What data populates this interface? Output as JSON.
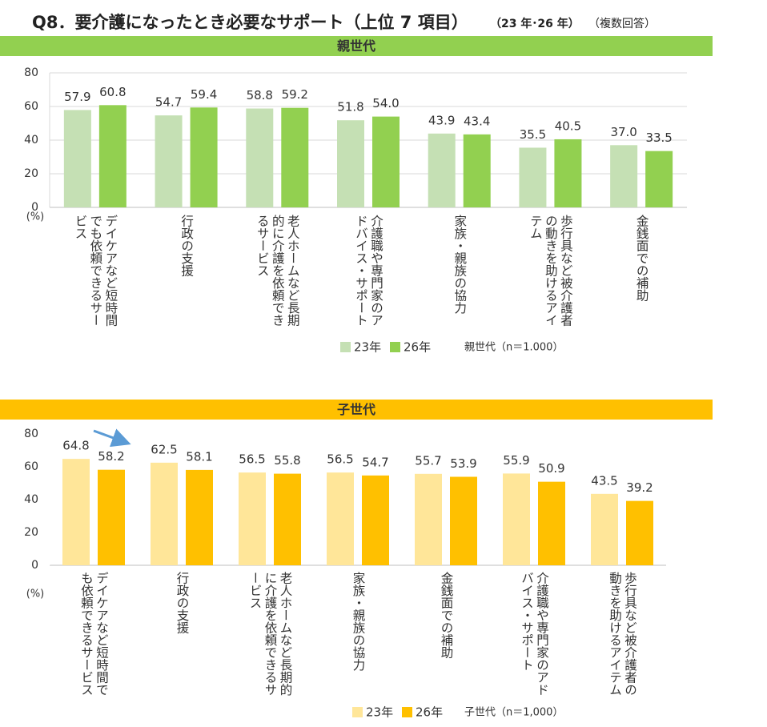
{
  "title": "Q8．要介護になったとき必要なサポート（上位 7 項目）",
  "period": "（23 年･26 年）",
  "note": "（複数回答）",
  "chart_data": [
    {
      "type": "bar",
      "title": "親世代",
      "title_color": "#92d050",
      "categories": [
        "デイケアなど短時間でも依頼できるサービス",
        "行政の支援",
        "老人ホームなど長期的に介護を依頼できるサービス",
        "介護職や専門家のアドバイス・サポート",
        "家族・親族の協力",
        "歩行具など被介護者の動きを助けるアイテム",
        "金銭面での補助"
      ],
      "series": [
        {
          "name": "23年",
          "color": "#c5e0b4",
          "values": [
            57.9,
            54.7,
            58.8,
            51.8,
            43.9,
            35.5,
            37.0
          ],
          "value_labels": [
            "57.9",
            "54.7",
            "58.8",
            "51.8",
            "43.9",
            "35.5",
            "37.0"
          ]
        },
        {
          "name": "26年",
          "color": "#92d050",
          "values": [
            60.8,
            59.4,
            59.2,
            54.0,
            43.4,
            40.5,
            33.5
          ],
          "value_labels": [
            "60.8",
            "59.4",
            "59.2",
            "54.0",
            "43.4",
            "40.5",
            "33.5"
          ]
        }
      ],
      "y_label": "(%)",
      "sample": "親世代（n＝1.000）",
      "ylim": [
        0,
        80
      ],
      "yticks": [
        0,
        20,
        40,
        60,
        80
      ],
      "grid": true
    },
    {
      "type": "bar",
      "title": "子世代",
      "title_color": "#ffc000",
      "categories": [
        "デイケアなど短時間でも依頼できるサービス",
        "行政の支援",
        "老人ホームなど長期的に介護を依頼できるサービス",
        "家族・親族の協力",
        "金銭面での補助",
        "介護職や専門家のアドバイス・サポート",
        "歩行具など被介護者の動きを助けるアイテム"
      ],
      "series": [
        {
          "name": "23年",
          "color": "#ffe699",
          "values": [
            64.8,
            62.5,
            56.5,
            56.5,
            55.7,
            55.9,
            43.5
          ],
          "value_labels": [
            "64.8",
            "62.5",
            "56.5",
            "56.5",
            "55.7",
            "55.9",
            "43.5"
          ]
        },
        {
          "name": "26年",
          "color": "#ffc000",
          "values": [
            58.2,
            58.1,
            55.8,
            54.7,
            53.9,
            50.9,
            39.2
          ],
          "value_labels": [
            "58.2",
            "58.1",
            "55.8",
            "54.7",
            "53.9",
            "50.9",
            "39.2"
          ]
        }
      ],
      "y_label": "(%)",
      "sample": "子世代（n＝1,000）",
      "ylim": [
        0,
        80
      ],
      "yticks": [
        0,
        20,
        40,
        60,
        80
      ],
      "grid": false
    }
  ]
}
